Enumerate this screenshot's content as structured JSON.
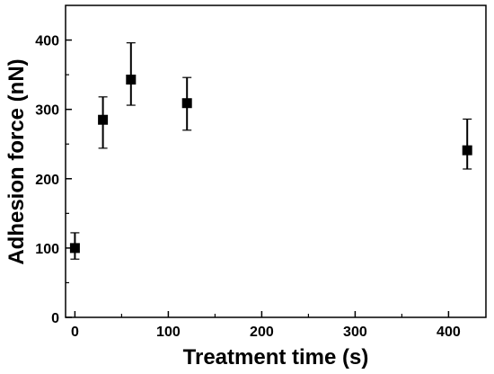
{
  "chart_data": {
    "type": "scatter",
    "title": "",
    "xlabel": "Treatment time (s)",
    "ylabel": "Adhesion force (nN)",
    "xlim": [
      -10,
      440
    ],
    "ylim": [
      0,
      450
    ],
    "xticks": [
      0,
      100,
      200,
      300,
      400
    ],
    "yticks": [
      0,
      100,
      200,
      300,
      400
    ],
    "xtick_labels": [
      "0",
      "100",
      "200",
      "300",
      "400"
    ],
    "ytick_labels": [
      "0",
      "100",
      "200",
      "300",
      "400"
    ],
    "grid": false,
    "marker": "square",
    "color": "#000000",
    "series": [
      {
        "points": [
          {
            "x": 0,
            "y": 100,
            "err_low": 84,
            "err_high": 122
          },
          {
            "x": 30,
            "y": 285,
            "err_low": 244,
            "err_high": 318
          },
          {
            "x": 60,
            "y": 343,
            "err_low": 306,
            "err_high": 396
          },
          {
            "x": 120,
            "y": 309,
            "err_low": 270,
            "err_high": 346
          },
          {
            "x": 420,
            "y": 241,
            "err_low": 214,
            "err_high": 286
          }
        ]
      }
    ]
  }
}
